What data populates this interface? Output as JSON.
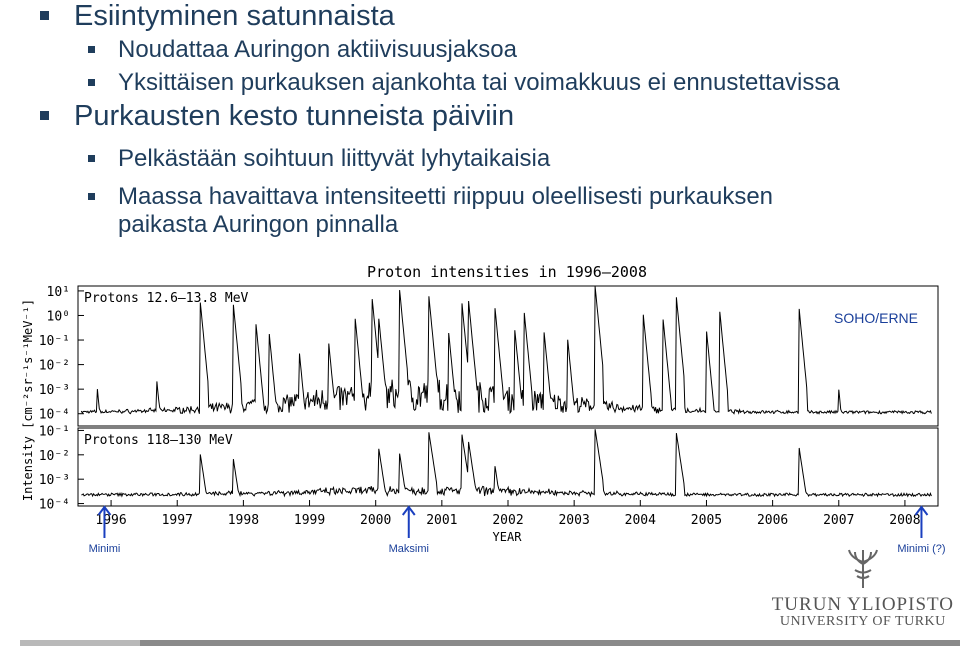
{
  "slide": {
    "title": "Esiintyminen satunnaista",
    "bullets_level2_a": [
      "Noudattaa Auringon aktiivisuusjaksoa",
      "Yksittäisen purkauksen ajankohta tai voimakkuus ei ennustettavissa"
    ],
    "heading2": "Purkausten kesto tunneista päiviin",
    "bullets_level2_b": [
      "Pelkästään soihtuun liittyvät lyhytaikaisia",
      "Maassa havaittava intensiteetti riippuu oleellisesti purkauksen paikasta Auringon pinnalla"
    ],
    "logo_line1": "TURUN YLIOPISTO",
    "logo_line2": "UNIVERSITY OF TURKU"
  },
  "colors": {
    "text": "#1f3d5c",
    "arrow": "#1a3fbf",
    "plot": "#000000"
  },
  "chart_data": {
    "type": "line",
    "title": "Proton intensities in 1996–2008",
    "xlabel": "YEAR",
    "ylabel": "Intensity [cm⁻²sr⁻¹s⁻¹MeV⁻¹]",
    "x_ticks": [
      "1996",
      "1997",
      "1998",
      "1999",
      "2000",
      "2001",
      "2002",
      "2003",
      "2004",
      "2005",
      "2006",
      "2007",
      "2008"
    ],
    "xlim": [
      1996,
      2009
    ],
    "log_scale": true,
    "source_label": "SOHO/ERNE",
    "panels": [
      {
        "name": "Protons 12.6–13.8 MeV",
        "y_tick_labels": [
          "10¹",
          "10⁰",
          "10⁻¹",
          "10⁻²",
          "10⁻³",
          "10⁻⁴"
        ],
        "ylim_log10": [
          -4.5,
          1.2
        ],
        "background_log10": -4.0,
        "events": [
          {
            "year": 1996.3,
            "log10": -3.2
          },
          {
            "year": 1997.2,
            "log10": -2.9
          },
          {
            "year": 1997.85,
            "log10": 0.5
          },
          {
            "year": 1998.35,
            "log10": 0.4
          },
          {
            "year": 1998.7,
            "log10": -0.6
          },
          {
            "year": 1998.9,
            "log10": -1.0
          },
          {
            "year": 1999.35,
            "log10": -1.6
          },
          {
            "year": 1999.8,
            "log10": -1.4
          },
          {
            "year": 2000.2,
            "log10": -0.4
          },
          {
            "year": 2000.45,
            "log10": 0.6
          },
          {
            "year": 2000.55,
            "log10": -0.2
          },
          {
            "year": 2000.87,
            "log10": 0.8
          },
          {
            "year": 2001.3,
            "log10": 0.9
          },
          {
            "year": 2001.6,
            "log10": -0.6
          },
          {
            "year": 2001.8,
            "log10": 0.6
          },
          {
            "year": 2001.9,
            "log10": 0.7
          },
          {
            "year": 2002.3,
            "log10": 0.4
          },
          {
            "year": 2002.6,
            "log10": -0.5
          },
          {
            "year": 2002.75,
            "log10": 0.0
          },
          {
            "year": 2003.05,
            "log10": -0.8
          },
          {
            "year": 2003.4,
            "log10": -0.9
          },
          {
            "year": 2003.82,
            "log10": 1.1
          },
          {
            "year": 2004.55,
            "log10": -0.1
          },
          {
            "year": 2004.85,
            "log10": -0.3
          },
          {
            "year": 2005.05,
            "log10": 0.6
          },
          {
            "year": 2005.5,
            "log10": -0.6
          },
          {
            "year": 2005.7,
            "log10": 0.2
          },
          {
            "year": 2006.9,
            "log10": 0.3
          },
          {
            "year": 2007.5,
            "log10": -3.0
          }
        ]
      },
      {
        "name": "Protons 118–130 MeV",
        "y_tick_labels": [
          "10⁻¹",
          "10⁻²",
          "10⁻³",
          "10⁻⁴"
        ],
        "ylim_log10": [
          -4.1,
          -0.9
        ],
        "background_log10": -3.7,
        "events": [
          {
            "year": 1997.85,
            "log10": -2.0
          },
          {
            "year": 1998.35,
            "log10": -2.2
          },
          {
            "year": 2000.55,
            "log10": -1.8
          },
          {
            "year": 2000.87,
            "log10": -2.1
          },
          {
            "year": 2001.3,
            "log10": -1.0
          },
          {
            "year": 2001.8,
            "log10": -1.1
          },
          {
            "year": 2001.9,
            "log10": -1.4
          },
          {
            "year": 2002.3,
            "log10": -2.4
          },
          {
            "year": 2003.82,
            "log10": -1.0
          },
          {
            "year": 2005.05,
            "log10": -1.2
          },
          {
            "year": 2006.9,
            "log10": -1.7
          }
        ]
      }
    ],
    "annotations": [
      {
        "label": "Minimi",
        "year": 1996.4
      },
      {
        "label": "Maksimi",
        "year": 2001.0
      },
      {
        "label": "Minimi (?)",
        "year": 2008.75
      }
    ]
  }
}
